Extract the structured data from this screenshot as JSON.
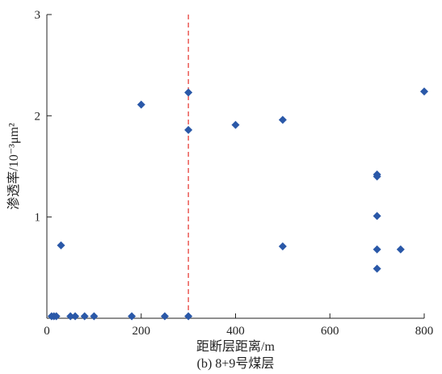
{
  "chart_data": {
    "type": "scatter",
    "title": "",
    "caption": "(b) 8+9号煤层",
    "xlabel": "距断层距离/m",
    "ylabel": "渗透率/10⁻³μm²",
    "xlim": [
      0,
      800
    ],
    "ylim": [
      0,
      3
    ],
    "xticks": [
      0,
      200,
      400,
      600,
      800
    ],
    "yticks": [
      1,
      2,
      3
    ],
    "grid": false,
    "marker": "diamond",
    "marker_color": "#2a58a8",
    "reference_line": {
      "x": 300,
      "style": "dashed",
      "color": "#e8403a"
    },
    "points": [
      {
        "x": 10,
        "y": 0.02
      },
      {
        "x": 15,
        "y": 0.02
      },
      {
        "x": 20,
        "y": 0.02
      },
      {
        "x": 30,
        "y": 0.72
      },
      {
        "x": 50,
        "y": 0.02
      },
      {
        "x": 60,
        "y": 0.02
      },
      {
        "x": 80,
        "y": 0.02
      },
      {
        "x": 100,
        "y": 0.02
      },
      {
        "x": 180,
        "y": 0.02
      },
      {
        "x": 200,
        "y": 2.11
      },
      {
        "x": 250,
        "y": 0.02
      },
      {
        "x": 300,
        "y": 0.02
      },
      {
        "x": 300,
        "y": 1.86
      },
      {
        "x": 300,
        "y": 2.23
      },
      {
        "x": 400,
        "y": 1.91
      },
      {
        "x": 500,
        "y": 1.96
      },
      {
        "x": 500,
        "y": 0.71
      },
      {
        "x": 700,
        "y": 1.42
      },
      {
        "x": 700,
        "y": 1.4
      },
      {
        "x": 700,
        "y": 1.01
      },
      {
        "x": 700,
        "y": 0.68
      },
      {
        "x": 700,
        "y": 0.49
      },
      {
        "x": 750,
        "y": 0.68
      },
      {
        "x": 800,
        "y": 2.24
      }
    ]
  }
}
